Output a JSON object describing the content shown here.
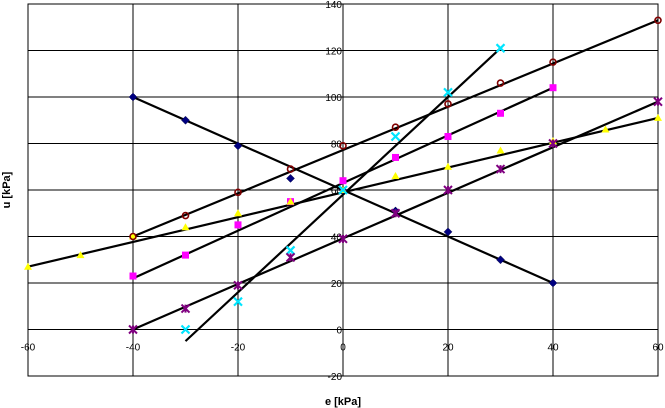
{
  "chart_data": {
    "type": "scatter",
    "title": "",
    "xlabel": "e [kPa]",
    "ylabel": "u [kPa]",
    "xlim": [
      -60,
      60
    ],
    "ylim": [
      -20,
      140
    ],
    "x_ticks": [
      -60,
      -40,
      -20,
      0,
      20,
      40,
      60
    ],
    "y_ticks": [
      -20,
      0,
      20,
      40,
      60,
      80,
      100,
      120,
      140
    ],
    "grid": true,
    "legend": "none",
    "series": [
      {
        "color": "#000080",
        "marker": "diamond",
        "points": [
          [
            -40,
            100
          ],
          [
            -30,
            90
          ],
          [
            -20,
            79
          ],
          [
            -10,
            65
          ],
          [
            0,
            60
          ],
          [
            10,
            51
          ],
          [
            20,
            42
          ],
          [
            30,
            30
          ],
          [
            40,
            20
          ]
        ]
      },
      {
        "color": "#ff00ff",
        "marker": "square",
        "points": [
          [
            -40,
            23
          ],
          [
            -30,
            32
          ],
          [
            -20,
            45
          ],
          [
            -10,
            55
          ],
          [
            0,
            64
          ],
          [
            10,
            74
          ],
          [
            20,
            83
          ],
          [
            30,
            93
          ],
          [
            40,
            104
          ]
        ]
      },
      {
        "color": "#ffff00",
        "marker": "triangle",
        "points": [
          [
            -60,
            27
          ],
          [
            -50,
            32
          ],
          [
            -40,
            40
          ],
          [
            -30,
            44
          ],
          [
            -20,
            50
          ],
          [
            -10,
            55
          ],
          [
            0,
            60
          ],
          [
            10,
            66
          ],
          [
            20,
            70
          ],
          [
            30,
            77
          ],
          [
            40,
            81
          ],
          [
            50,
            86
          ],
          [
            60,
            91
          ]
        ]
      },
      {
        "color": "#00e5ff",
        "marker": "x",
        "points": [
          [
            -30,
            0
          ],
          [
            -20,
            12
          ],
          [
            -10,
            34
          ],
          [
            0,
            60
          ],
          [
            10,
            83
          ],
          [
            20,
            102
          ],
          [
            30,
            121
          ]
        ]
      },
      {
        "color": "#800080",
        "marker": "star",
        "points": [
          [
            -40,
            0
          ],
          [
            -30,
            9
          ],
          [
            -20,
            19
          ],
          [
            -10,
            31
          ],
          [
            0,
            39
          ],
          [
            10,
            50
          ],
          [
            20,
            60
          ],
          [
            30,
            69
          ],
          [
            40,
            80
          ],
          [
            60,
            98
          ]
        ]
      },
      {
        "color": "#800000",
        "marker": "circle",
        "points": [
          [
            -40,
            40
          ],
          [
            -30,
            49
          ],
          [
            -20,
            59
          ],
          [
            -10,
            69
          ],
          [
            0,
            79
          ],
          [
            10,
            87
          ],
          [
            20,
            97
          ],
          [
            30,
            106
          ],
          [
            40,
            115
          ],
          [
            60,
            133
          ]
        ]
      }
    ],
    "trendlines": [
      {
        "x": [
          -40,
          40
        ],
        "y": [
          100,
          20
        ]
      },
      {
        "x": [
          -40,
          40
        ],
        "y": [
          22,
          104
        ]
      },
      {
        "x": [
          -60,
          60
        ],
        "y": [
          27,
          91
        ]
      },
      {
        "x": [
          -30,
          30
        ],
        "y": [
          -5,
          121
        ]
      },
      {
        "x": [
          -40,
          60
        ],
        "y": [
          0,
          98
        ]
      },
      {
        "x": [
          -40,
          60
        ],
        "y": [
          40,
          133
        ]
      }
    ]
  }
}
